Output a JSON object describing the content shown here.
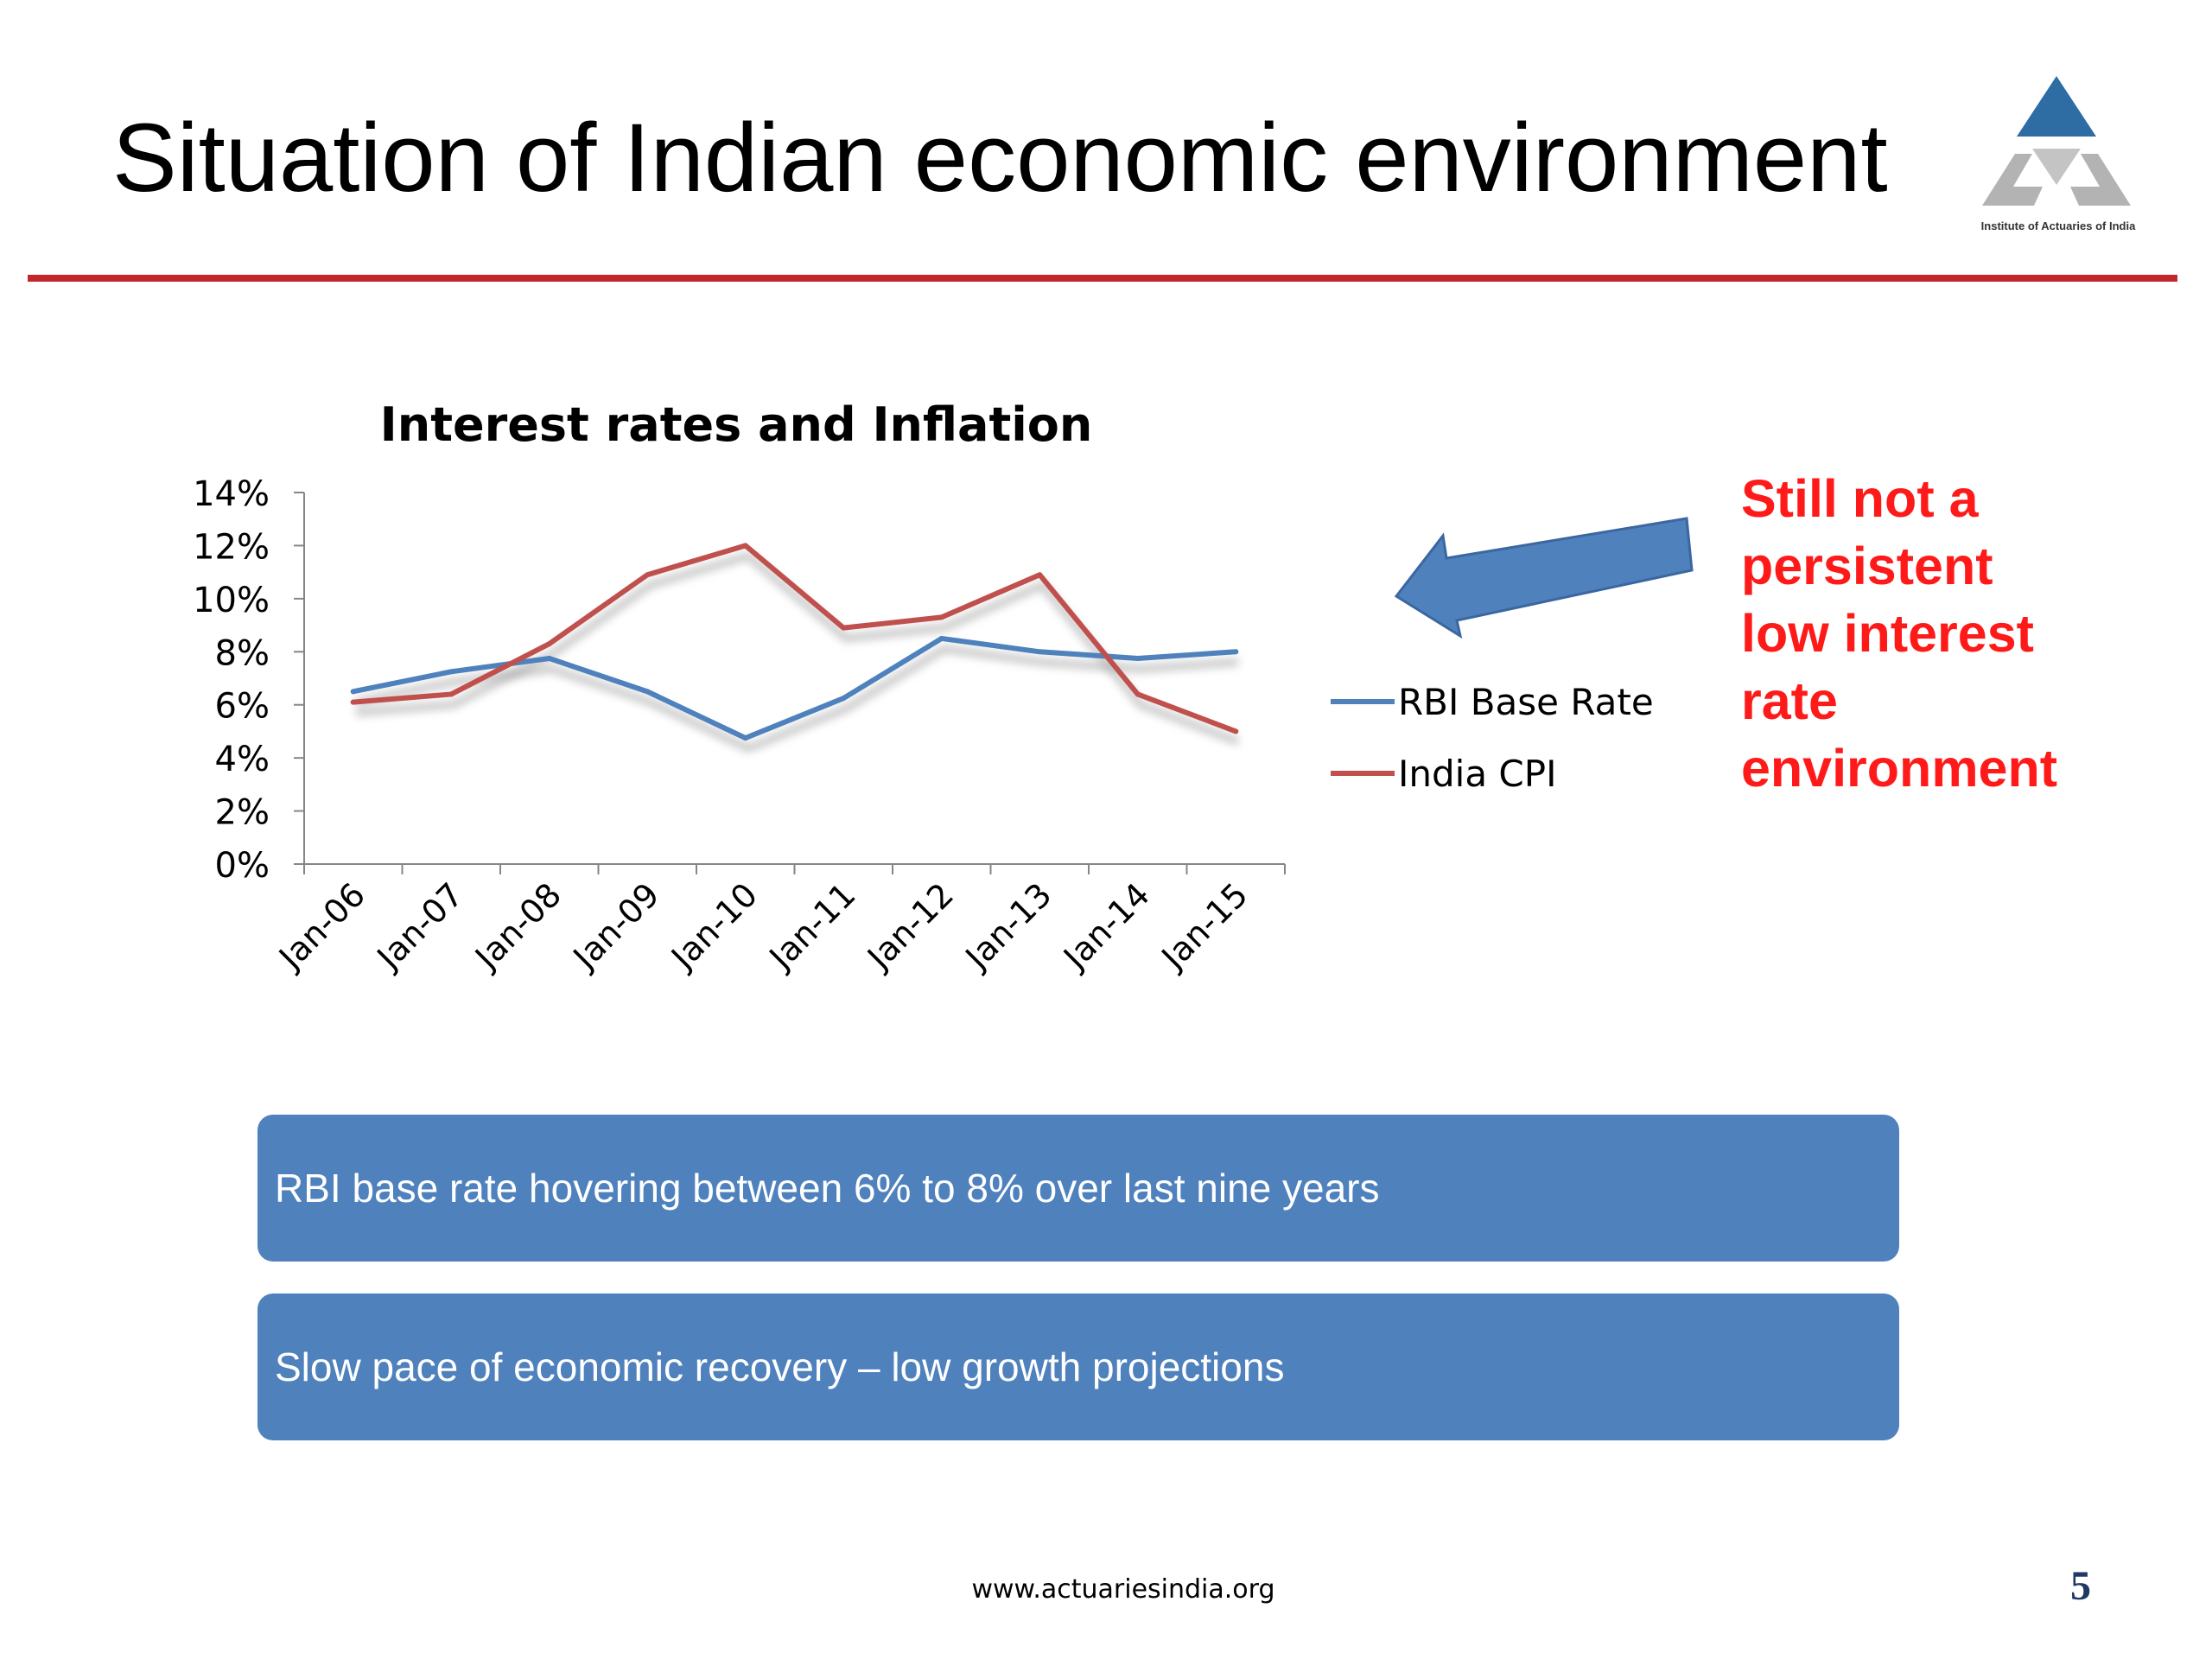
{
  "slide": {
    "title": "Situation of Indian economic environment",
    "logo_text": "Institute of Actuaries of India",
    "callout_lines": [
      "Still not a",
      "persistent",
      "low interest",
      "rate",
      "environment"
    ],
    "boxes": [
      "RBI base rate hovering between 6% to 8% over last nine years",
      "Slow pace of economic recovery – low growth projections"
    ],
    "footer_url": "www.actuariesindia.org",
    "page_number": "5"
  },
  "colors": {
    "title_rule": "#c0282c",
    "callout_text": "#ff1a1a",
    "box_fill": "#4f81bd",
    "arrow_fill": "#4f81bd",
    "logo_blue": "#2e6da4",
    "logo_grey": "#b3b3b3"
  },
  "chart_data": {
    "type": "line",
    "title": "Interest rates and Inflation",
    "categories": [
      "Jan-06",
      "Jan-07",
      "Jan-08",
      "Jan-09",
      "Jan-10",
      "Jan-11",
      "Jan-12",
      "Jan-13",
      "Jan-14",
      "Jan-15"
    ],
    "series": [
      {
        "name": "RBI Base Rate",
        "color": "#4f81bd",
        "values": [
          6.5,
          7.25,
          7.75,
          6.5,
          4.75,
          6.25,
          8.5,
          8.0,
          7.75,
          8.0
        ]
      },
      {
        "name": "India CPI",
        "color": "#c0504d",
        "values": [
          6.1,
          6.4,
          8.3,
          10.9,
          12.0,
          8.9,
          9.3,
          10.9,
          6.4,
          5.0
        ]
      }
    ],
    "y_ticks": [
      "0%",
      "2%",
      "4%",
      "6%",
      "8%",
      "10%",
      "12%",
      "14%"
    ],
    "ylim": [
      0,
      14
    ],
    "y_unit": "%",
    "legend_position": "right",
    "grid": false,
    "series_shadow": true
  }
}
